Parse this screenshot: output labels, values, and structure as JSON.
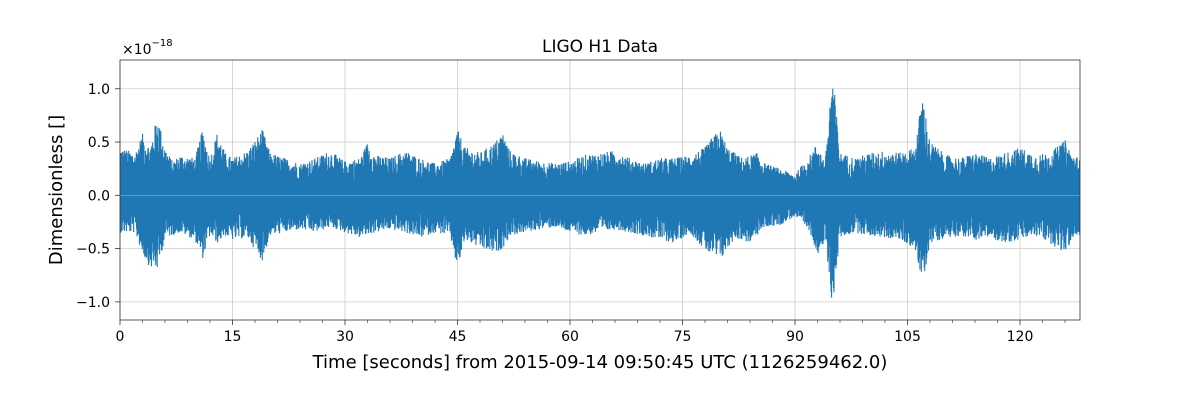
{
  "chart_data": {
    "type": "line",
    "title": "LIGO H1 Data",
    "xlabel": "Time [seconds] from 2015-09-14 09:50:45 UTC (1126259462.0)",
    "ylabel": "Dimensionless []",
    "y_scale_label": "×10",
    "y_scale_exponent": "−18",
    "xlim": [
      0,
      128
    ],
    "ylim": [
      -1.17,
      1.27
    ],
    "x_ticks": [
      0,
      15,
      30,
      45,
      60,
      75,
      90,
      105,
      120
    ],
    "x_tick_labels": [
      "0",
      "15",
      "30",
      "45",
      "60",
      "75",
      "90",
      "105",
      "120"
    ],
    "y_ticks": [
      -1.0,
      -0.5,
      0.0,
      0.5,
      1.0
    ],
    "y_tick_labels": [
      "−1.0",
      "−0.5",
      "0.0",
      "0.5",
      "1.0"
    ],
    "grid": true,
    "series": [
      {
        "color": "#1f77b4",
        "envelope_upper": [
          [
            0,
            0.45
          ],
          [
            2,
            0.4
          ],
          [
            3,
            0.58
          ],
          [
            4,
            0.45
          ],
          [
            5,
            0.76
          ],
          [
            6,
            0.45
          ],
          [
            7,
            0.32
          ],
          [
            8,
            0.38
          ],
          [
            10,
            0.35
          ],
          [
            11,
            0.62
          ],
          [
            12,
            0.35
          ],
          [
            13,
            0.6
          ],
          [
            14,
            0.4
          ],
          [
            15,
            0.35
          ],
          [
            17,
            0.42
          ],
          [
            19,
            0.62
          ],
          [
            20,
            0.4
          ],
          [
            22,
            0.35
          ],
          [
            24,
            0.3
          ],
          [
            26,
            0.35
          ],
          [
            28,
            0.42
          ],
          [
            30,
            0.32
          ],
          [
            32,
            0.35
          ],
          [
            33,
            0.5
          ],
          [
            34,
            0.38
          ],
          [
            36,
            0.35
          ],
          [
            38,
            0.42
          ],
          [
            40,
            0.35
          ],
          [
            42,
            0.3
          ],
          [
            44,
            0.35
          ],
          [
            45,
            0.62
          ],
          [
            46,
            0.45
          ],
          [
            48,
            0.4
          ],
          [
            50,
            0.5
          ],
          [
            51,
            0.6
          ],
          [
            52,
            0.42
          ],
          [
            54,
            0.35
          ],
          [
            56,
            0.32
          ],
          [
            58,
            0.3
          ],
          [
            60,
            0.32
          ],
          [
            62,
            0.38
          ],
          [
            64,
            0.4
          ],
          [
            66,
            0.42
          ],
          [
            68,
            0.35
          ],
          [
            70,
            0.3
          ],
          [
            72,
            0.35
          ],
          [
            74,
            0.35
          ],
          [
            76,
            0.38
          ],
          [
            78,
            0.45
          ],
          [
            79,
            0.55
          ],
          [
            80,
            0.62
          ],
          [
            81,
            0.45
          ],
          [
            83,
            0.35
          ],
          [
            85,
            0.4
          ],
          [
            86,
            0.3
          ],
          [
            88,
            0.25
          ],
          [
            90,
            0.2
          ],
          [
            92,
            0.38
          ],
          [
            93,
            0.5
          ],
          [
            94,
            0.3
          ],
          [
            95,
            1.18
          ],
          [
            96,
            0.4
          ],
          [
            98,
            0.35
          ],
          [
            100,
            0.4
          ],
          [
            102,
            0.42
          ],
          [
            104,
            0.4
          ],
          [
            106,
            0.45
          ],
          [
            107,
            0.95
          ],
          [
            108,
            0.5
          ],
          [
            109,
            0.45
          ],
          [
            110,
            0.38
          ],
          [
            112,
            0.35
          ],
          [
            114,
            0.4
          ],
          [
            116,
            0.35
          ],
          [
            118,
            0.4
          ],
          [
            120,
            0.45
          ],
          [
            122,
            0.38
          ],
          [
            124,
            0.4
          ],
          [
            126,
            0.52
          ],
          [
            127,
            0.38
          ],
          [
            128,
            0.35
          ]
        ],
        "envelope_lower": [
          [
            0,
            -0.35
          ],
          [
            2,
            -0.35
          ],
          [
            3,
            -0.55
          ],
          [
            4,
            -0.68
          ],
          [
            5,
            -0.7
          ],
          [
            6,
            -0.4
          ],
          [
            8,
            -0.35
          ],
          [
            10,
            -0.42
          ],
          [
            11,
            -0.6
          ],
          [
            12,
            -0.38
          ],
          [
            13,
            -0.45
          ],
          [
            14,
            -0.38
          ],
          [
            15,
            -0.42
          ],
          [
            17,
            -0.4
          ],
          [
            19,
            -0.62
          ],
          [
            20,
            -0.38
          ],
          [
            22,
            -0.35
          ],
          [
            24,
            -0.32
          ],
          [
            26,
            -0.35
          ],
          [
            28,
            -0.3
          ],
          [
            30,
            -0.35
          ],
          [
            32,
            -0.4
          ],
          [
            34,
            -0.35
          ],
          [
            36,
            -0.32
          ],
          [
            38,
            -0.35
          ],
          [
            40,
            -0.4
          ],
          [
            42,
            -0.35
          ],
          [
            44,
            -0.38
          ],
          [
            45,
            -0.7
          ],
          [
            46,
            -0.42
          ],
          [
            48,
            -0.5
          ],
          [
            50,
            -0.55
          ],
          [
            51,
            -0.5
          ],
          [
            52,
            -0.38
          ],
          [
            54,
            -0.35
          ],
          [
            56,
            -0.32
          ],
          [
            58,
            -0.3
          ],
          [
            60,
            -0.35
          ],
          [
            62,
            -0.38
          ],
          [
            64,
            -0.35
          ],
          [
            66,
            -0.32
          ],
          [
            68,
            -0.35
          ],
          [
            70,
            -0.38
          ],
          [
            72,
            -0.42
          ],
          [
            74,
            -0.45
          ],
          [
            76,
            -0.35
          ],
          [
            78,
            -0.52
          ],
          [
            80,
            -0.62
          ],
          [
            82,
            -0.4
          ],
          [
            84,
            -0.45
          ],
          [
            86,
            -0.3
          ],
          [
            88,
            -0.28
          ],
          [
            90,
            -0.2
          ],
          [
            92,
            -0.35
          ],
          [
            93,
            -0.55
          ],
          [
            94,
            -0.45
          ],
          [
            95,
            -1.05
          ],
          [
            96,
            -0.4
          ],
          [
            98,
            -0.35
          ],
          [
            100,
            -0.38
          ],
          [
            102,
            -0.4
          ],
          [
            104,
            -0.42
          ],
          [
            106,
            -0.5
          ],
          [
            107,
            -0.85
          ],
          [
            108,
            -0.45
          ],
          [
            110,
            -0.4
          ],
          [
            112,
            -0.38
          ],
          [
            114,
            -0.42
          ],
          [
            116,
            -0.4
          ],
          [
            118,
            -0.45
          ],
          [
            120,
            -0.42
          ],
          [
            122,
            -0.38
          ],
          [
            124,
            -0.45
          ],
          [
            126,
            -0.55
          ],
          [
            127,
            -0.42
          ],
          [
            128,
            -0.38
          ]
        ]
      }
    ]
  }
}
